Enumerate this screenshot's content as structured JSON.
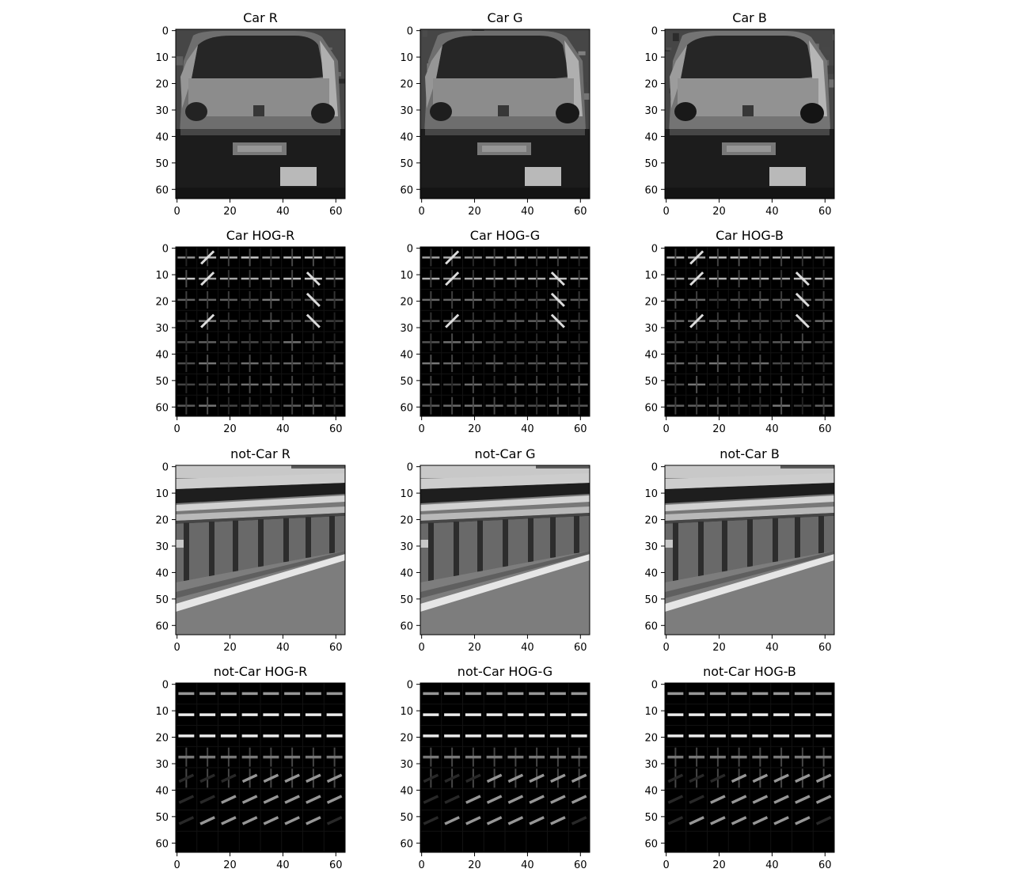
{
  "chart_data": [
    {
      "type": "heatmap",
      "kind": "photo",
      "subject": "car",
      "title": "Car R",
      "xlim": [
        0,
        63
      ],
      "ylim": [
        63,
        0
      ],
      "xticks": [
        0,
        20,
        40,
        60
      ],
      "yticks": [
        0,
        10,
        20,
        30,
        40,
        50,
        60
      ],
      "colormap": "gray"
    },
    {
      "type": "heatmap",
      "kind": "photo",
      "subject": "car",
      "title": "Car G",
      "xlim": [
        0,
        63
      ],
      "ylim": [
        63,
        0
      ],
      "xticks": [
        0,
        20,
        40,
        60
      ],
      "yticks": [
        0,
        10,
        20,
        30,
        40,
        50,
        60
      ],
      "colormap": "gray"
    },
    {
      "type": "heatmap",
      "kind": "photo",
      "subject": "car",
      "title": "Car B",
      "xlim": [
        0,
        63
      ],
      "ylim": [
        63,
        0
      ],
      "xticks": [
        0,
        20,
        40,
        60
      ],
      "yticks": [
        0,
        10,
        20,
        30,
        40,
        50,
        60
      ],
      "colormap": "gray"
    },
    {
      "type": "heatmap",
      "kind": "hog",
      "subject": "car",
      "title": "Car HOG-R",
      "xlim": [
        0,
        63
      ],
      "ylim": [
        63,
        0
      ],
      "xticks": [
        0,
        20,
        40,
        60
      ],
      "yticks": [
        0,
        10,
        20,
        30,
        40,
        50,
        60
      ],
      "colormap": "gray"
    },
    {
      "type": "heatmap",
      "kind": "hog",
      "subject": "car",
      "title": "Car HOG-G",
      "xlim": [
        0,
        63
      ],
      "ylim": [
        63,
        0
      ],
      "xticks": [
        0,
        20,
        40,
        60
      ],
      "yticks": [
        0,
        10,
        20,
        30,
        40,
        50,
        60
      ],
      "colormap": "gray"
    },
    {
      "type": "heatmap",
      "kind": "hog",
      "subject": "car",
      "title": "Car HOG-B",
      "xlim": [
        0,
        63
      ],
      "ylim": [
        63,
        0
      ],
      "xticks": [
        0,
        20,
        40,
        60
      ],
      "yticks": [
        0,
        10,
        20,
        30,
        40,
        50,
        60
      ],
      "colormap": "gray"
    },
    {
      "type": "heatmap",
      "kind": "photo",
      "subject": "notcar",
      "title": "not-Car R",
      "xlim": [
        0,
        63
      ],
      "ylim": [
        63,
        0
      ],
      "xticks": [
        0,
        20,
        40,
        60
      ],
      "yticks": [
        0,
        10,
        20,
        30,
        40,
        50,
        60
      ],
      "colormap": "gray"
    },
    {
      "type": "heatmap",
      "kind": "photo",
      "subject": "notcar",
      "title": "not-Car G",
      "xlim": [
        0,
        63
      ],
      "ylim": [
        63,
        0
      ],
      "xticks": [
        0,
        20,
        40,
        60
      ],
      "yticks": [
        0,
        10,
        20,
        30,
        40,
        50,
        60
      ],
      "colormap": "gray"
    },
    {
      "type": "heatmap",
      "kind": "photo",
      "subject": "notcar",
      "title": "not-Car B",
      "xlim": [
        0,
        63
      ],
      "ylim": [
        63,
        0
      ],
      "xticks": [
        0,
        20,
        40,
        60
      ],
      "yticks": [
        0,
        10,
        20,
        30,
        40,
        50,
        60
      ],
      "colormap": "gray"
    },
    {
      "type": "heatmap",
      "kind": "hog",
      "subject": "notcar",
      "title": "not-Car HOG-R",
      "xlim": [
        0,
        63
      ],
      "ylim": [
        63,
        0
      ],
      "xticks": [
        0,
        20,
        40,
        60
      ],
      "yticks": [
        0,
        10,
        20,
        30,
        40,
        50,
        60
      ],
      "colormap": "gray"
    },
    {
      "type": "heatmap",
      "kind": "hog",
      "subject": "notcar",
      "title": "not-Car HOG-G",
      "xlim": [
        0,
        63
      ],
      "ylim": [
        63,
        0
      ],
      "xticks": [
        0,
        20,
        40,
        60
      ],
      "yticks": [
        0,
        10,
        20,
        30,
        40,
        50,
        60
      ],
      "colormap": "gray"
    },
    {
      "type": "heatmap",
      "kind": "hog",
      "subject": "notcar",
      "title": "not-Car HOG-B",
      "xlim": [
        0,
        63
      ],
      "ylim": [
        63,
        0
      ],
      "xticks": [
        0,
        20,
        40,
        60
      ],
      "yticks": [
        0,
        10,
        20,
        30,
        40,
        50,
        60
      ],
      "colormap": "gray"
    }
  ],
  "colors": {
    "background": "#ffffff",
    "axis": "#000000",
    "text": "#000000",
    "hog_background": "#000000"
  }
}
